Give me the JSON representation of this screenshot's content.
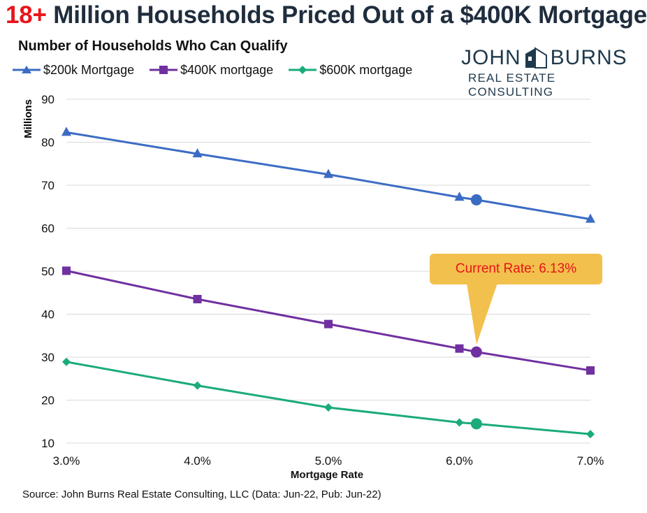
{
  "header": {
    "title_accent": "18+",
    "title_rest": " Million Households Priced Out of a $400K Mortgage",
    "subtitle": "Number of Households Who Can Qualify"
  },
  "logo": {
    "word1": "JOHN",
    "word2": "BURNS",
    "tagline": "REAL ESTATE CONSULTING"
  },
  "callout": {
    "text": "Current Rate: 6.13%"
  },
  "source": "Source: John Burns Real Estate Consulting, LLC (Data: Jun-22, Pub: Jun-22)",
  "colors": {
    "series1": "#3b6cc4",
    "series2": "#7030a0",
    "series3": "#1aab7a",
    "callout": "#f2c04c",
    "accent": "#e8141b"
  },
  "chart_data": {
    "type": "line",
    "ylabel": "Millions",
    "xlabel": "Mortgage Rate",
    "xlim": [
      3.0,
      7.0
    ],
    "ylim": [
      10,
      90
    ],
    "x_ticks": [
      "3.0%",
      "4.0%",
      "5.0%",
      "6.0%",
      "7.0%"
    ],
    "y_ticks": [
      10,
      20,
      30,
      40,
      50,
      60,
      70,
      80,
      90
    ],
    "grid": true,
    "legend": "top-left",
    "series": [
      {
        "name": "$200k Mortgage",
        "marker": "triangle",
        "x": [
          3.0,
          4.0,
          5.0,
          6.0,
          7.0
        ],
        "values": [
          82.3,
          77.3,
          72.5,
          67.2,
          62.1
        ],
        "current": {
          "x": 6.13,
          "y": 66.6
        }
      },
      {
        "name": "$400K mortgage",
        "marker": "square",
        "x": [
          3.0,
          4.0,
          5.0,
          6.0,
          7.0
        ],
        "values": [
          50.1,
          43.5,
          37.7,
          32.0,
          26.9
        ],
        "current": {
          "x": 6.13,
          "y": 31.2
        }
      },
      {
        "name": "$600K mortgage",
        "marker": "diamond",
        "x": [
          3.0,
          4.0,
          5.0,
          6.0,
          7.0
        ],
        "values": [
          28.9,
          23.4,
          18.3,
          14.8,
          12.1
        ],
        "current": {
          "x": 6.13,
          "y": 14.5
        }
      }
    ]
  }
}
